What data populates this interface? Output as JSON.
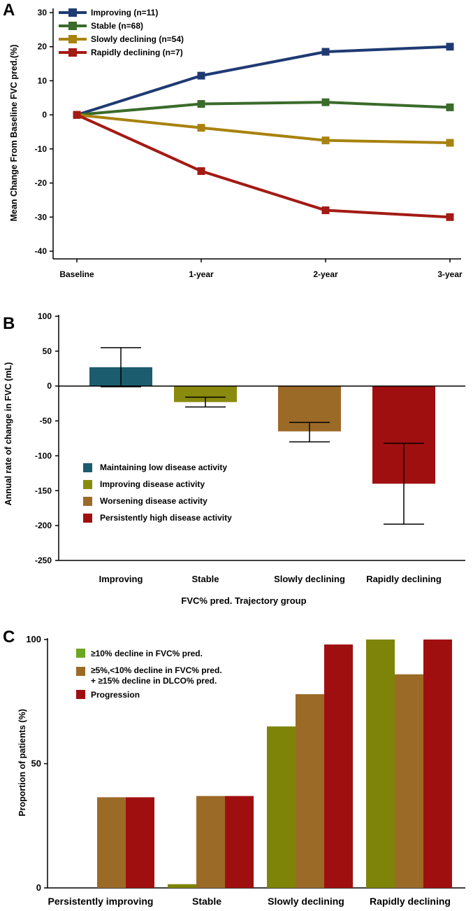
{
  "chart_data": [
    {
      "panel": "A",
      "type": "line",
      "ylabel": "Mean Change From Baseline FVC pred.(%)",
      "xlabel": "",
      "categories": [
        "Baseline",
        "1-year",
        "2-year",
        "3-year"
      ],
      "ylim": [
        -40,
        30
      ],
      "yticks": [
        "30",
        "20",
        "10",
        "0",
        "-10",
        "-20",
        "-30",
        "-40"
      ],
      "series": [
        {
          "name": "Improving (n=11)",
          "values": [
            0,
            11.5,
            18.5,
            20
          ],
          "color": "#1f3a73"
        },
        {
          "name": "Stable (n=68)",
          "values": [
            0,
            3.2,
            3.7,
            2.2
          ],
          "color": "#3a6b2b"
        },
        {
          "name": "Slowly declining (n=54)",
          "values": [
            0,
            -3.8,
            -7.5,
            -8.2
          ],
          "color": "#a8820e"
        },
        {
          "name": "Rapidly declining (n=7)",
          "values": [
            0,
            -16.5,
            -28,
            -30
          ],
          "color": "#a41a15"
        }
      ],
      "legend": "top-left"
    },
    {
      "panel": "B",
      "type": "bar",
      "ylabel": "Annual rate of change in FVC (mL)",
      "xlabel": "FVC% pred. Trajectory group",
      "categories": [
        "Improving",
        "Stable",
        "Slowly declining",
        "Rapidly declining"
      ],
      "ylim": [
        -250,
        100
      ],
      "yticks": [
        "100",
        "50",
        "0",
        "-50",
        "-100",
        "-150",
        "-200",
        "-250"
      ],
      "values": [
        27,
        -23,
        -65,
        -140
      ],
      "error_low": [
        -1,
        -30,
        -80,
        -198
      ],
      "error_high": [
        55,
        -16,
        -52,
        -82
      ],
      "bar_colors": [
        "#1b5c6e",
        "#8a8a0e",
        "#9c6a27",
        "#a00f0f"
      ],
      "legend_items": [
        {
          "label": "Maintaining low disease activity",
          "color": "#1b5c6e"
        },
        {
          "label": "Improving disease activity",
          "color": "#8a8a0e"
        },
        {
          "label": "Worsening disease activity",
          "color": "#9c6a27"
        },
        {
          "label": "Persistently high disease activity",
          "color": "#a00f0f"
        }
      ],
      "legend": "lower-left"
    },
    {
      "panel": "C",
      "type": "bar",
      "ylabel": "Proportion of patients (%)",
      "xlabel": "",
      "categories": [
        "Persistently improving",
        "Stable",
        "Slowly declining",
        "Rapidly declining"
      ],
      "ylim": [
        0,
        100
      ],
      "yticks": [
        "100",
        "50",
        "0"
      ],
      "series": [
        {
          "name": "≥10% decline in FVC% pred.",
          "values": [
            0,
            1.5,
            65,
            100
          ],
          "color": "#7e8407"
        },
        {
          "name": "≥5%,<10% decline in FVC% pred. + ≥15% decline in DLCO% pred.",
          "line1": "≥5%,<10% decline in FVC% pred.",
          "line2": "+ ≥15% decline in DLCO% pred.",
          "values": [
            36.5,
            37,
            78,
            86
          ],
          "color": "#9c6a27"
        },
        {
          "name": "Progression",
          "values": [
            36.5,
            37,
            98,
            100
          ],
          "color": "#a00f0f"
        }
      ],
      "legend_swatch_color_first": "#6ea61f",
      "legend": "top-left"
    }
  ]
}
